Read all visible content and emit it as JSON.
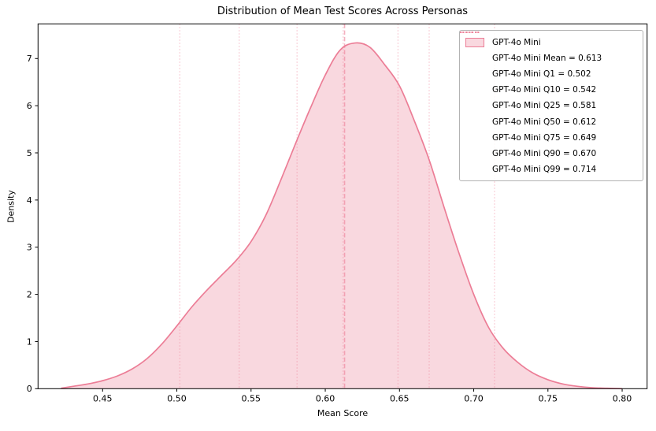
{
  "chart_data": {
    "type": "area",
    "subtype": "kde-density",
    "title": "Distribution of Mean Test Scores Across Personas",
    "xlabel": "Mean Score",
    "ylabel": "Density",
    "xlim": [
      0.4065,
      0.8168
    ],
    "ylim": [
      0,
      7.735
    ],
    "x_ticks": [
      "0.45",
      "0.50",
      "0.55",
      "0.60",
      "0.65",
      "0.70",
      "0.75",
      "0.80"
    ],
    "y_ticks": [
      "0",
      "1",
      "2",
      "3",
      "4",
      "5",
      "6",
      "7"
    ],
    "grid": false,
    "legend_position": "upper right",
    "series": [
      {
        "name": "GPT-4o Mini",
        "x": [
          0.422,
          0.43,
          0.44,
          0.45,
          0.46,
          0.47,
          0.48,
          0.49,
          0.5,
          0.51,
          0.52,
          0.53,
          0.54,
          0.55,
          0.56,
          0.57,
          0.58,
          0.59,
          0.6,
          0.61,
          0.62,
          0.63,
          0.64,
          0.65,
          0.66,
          0.67,
          0.68,
          0.69,
          0.7,
          0.71,
          0.72,
          0.73,
          0.74,
          0.75,
          0.76,
          0.77,
          0.78,
          0.79,
          0.8
        ],
        "density": [
          0.01,
          0.05,
          0.1,
          0.17,
          0.27,
          0.42,
          0.64,
          0.95,
          1.33,
          1.73,
          2.08,
          2.4,
          2.72,
          3.12,
          3.68,
          4.42,
          5.2,
          5.95,
          6.65,
          7.18,
          7.33,
          7.24,
          6.87,
          6.42,
          5.68,
          4.85,
          3.85,
          2.88,
          2.0,
          1.3,
          0.85,
          0.55,
          0.33,
          0.19,
          0.1,
          0.05,
          0.02,
          0.01,
          0.0
        ]
      }
    ],
    "stats": {
      "mean": 0.613,
      "quantiles": [
        {
          "name": "Q1",
          "value": 0.502
        },
        {
          "name": "Q10",
          "value": 0.542
        },
        {
          "name": "Q25",
          "value": 0.581
        },
        {
          "name": "Q50",
          "value": 0.612
        },
        {
          "name": "Q75",
          "value": 0.649
        },
        {
          "name": "Q90",
          "value": 0.67
        },
        {
          "name": "Q99",
          "value": 0.714
        }
      ]
    }
  },
  "legend": {
    "items": [
      {
        "label": "GPT-4o Mini",
        "swatch": "patch"
      },
      {
        "label": "GPT-4o Mini Mean = 0.613",
        "swatch": "dash"
      },
      {
        "label": "GPT-4o Mini Q1 = 0.502",
        "swatch": "dot"
      },
      {
        "label": "GPT-4o Mini Q10 = 0.542",
        "swatch": "dot"
      },
      {
        "label": "GPT-4o Mini Q25 = 0.581",
        "swatch": "dot"
      },
      {
        "label": "GPT-4o Mini Q50 = 0.612",
        "swatch": "dot"
      },
      {
        "label": "GPT-4o Mini Q75 = 0.649",
        "swatch": "dot"
      },
      {
        "label": "GPT-4o Mini Q90 = 0.670",
        "swatch": "dot"
      },
      {
        "label": "GPT-4o Mini Q99 = 0.714",
        "swatch": "dot"
      }
    ]
  },
  "colors": {
    "line": "#ec7d96",
    "fill": "rgba(236,125,150,0.30)",
    "mean_line": "rgba(236,125,150,0.60)",
    "quantile_line": "rgba(236,125,150,0.38)",
    "spine": "#000000",
    "tick_label": "#000000",
    "legend_border": "#b3b3b3"
  }
}
